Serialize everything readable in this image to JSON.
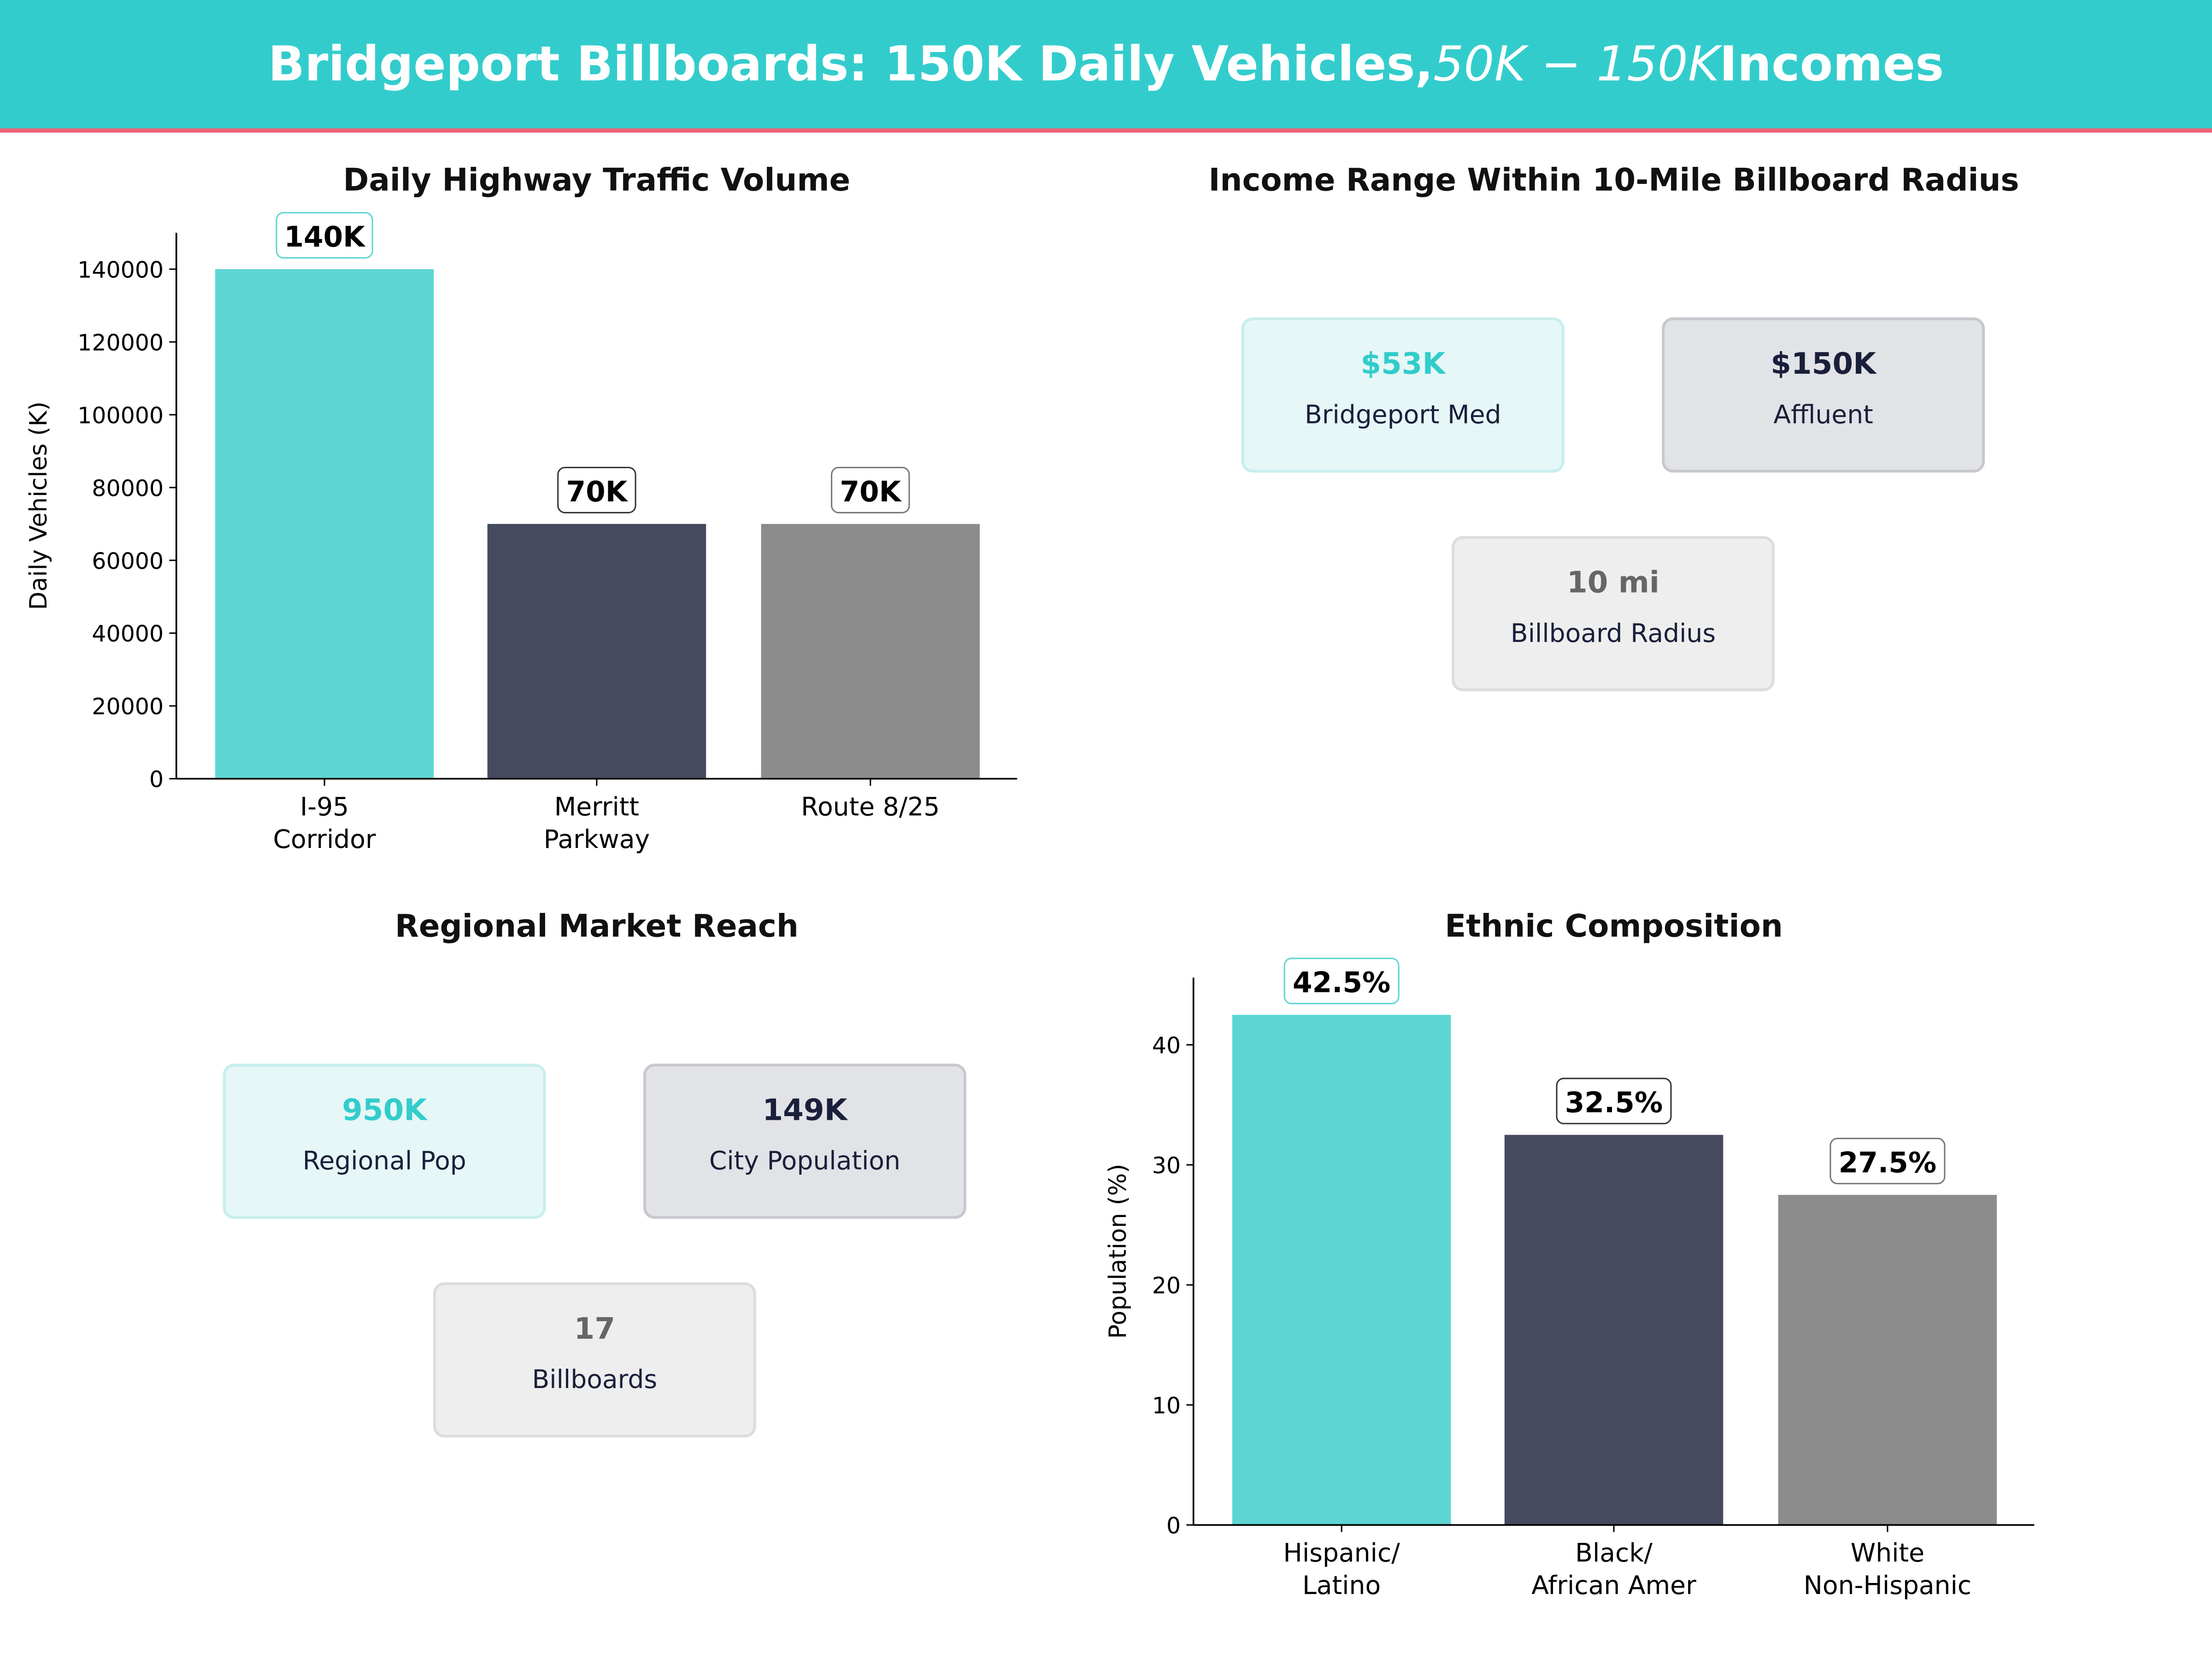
{
  "header": {
    "title_prefix": "Bridgeport Billboards: 150K Daily Vehicles, ",
    "title_math": "50K − 150K",
    "title_suffix": " Incomes",
    "bg_color": "#33CCCC",
    "accent_line_color": "#F06277"
  },
  "colors": {
    "teal": "#5DD6D3",
    "navy": "#454A5F",
    "gray": "#8C8C8C",
    "teal_text": "#33CCCC",
    "navy_text": "#1A1F3A",
    "gray_text": "#666666"
  },
  "income_panel": {
    "title": "Income Range Within 10-Mile Billboard Radius",
    "cards": [
      {
        "value": "$53K",
        "label": "Bridgeport Med"
      },
      {
        "value": "$150K",
        "label": "Affluent"
      },
      {
        "value": "10 mi",
        "label": "Billboard Radius"
      }
    ]
  },
  "market_panel": {
    "title": "Regional Market Reach",
    "cards": [
      {
        "value": "950K",
        "label": "Regional Pop"
      },
      {
        "value": "149K",
        "label": "City Population"
      },
      {
        "value": "17",
        "label": "Billboards"
      }
    ]
  },
  "chart_data": [
    {
      "type": "bar",
      "title": "Daily Highway Traffic Volume",
      "xlabel": "",
      "ylabel": "Daily Vehicles (K)",
      "categories": [
        "I-95\nCorridor",
        "Merritt\nParkway",
        "Route 8/25"
      ],
      "values": [
        140000,
        70000,
        70000
      ],
      "data_labels": [
        "140K",
        "70K",
        "70K"
      ],
      "ylim": [
        0,
        150000
      ],
      "yticks": [
        0,
        20000,
        40000,
        60000,
        80000,
        100000,
        120000,
        140000
      ],
      "grid": false
    },
    {
      "type": "bar",
      "title": "Ethnic Composition",
      "xlabel": "",
      "ylabel": "Population (%)",
      "categories": [
        "Hispanic/\nLatino",
        "Black/\nAfrican Amer",
        "White\nNon-Hispanic"
      ],
      "values": [
        42.5,
        32.5,
        27.5
      ],
      "data_labels": [
        "42.5%",
        "32.5%",
        "27.5%"
      ],
      "ylim": [
        0,
        45.6
      ],
      "yticks": [
        0,
        10,
        20,
        30,
        40
      ],
      "grid": false
    }
  ]
}
